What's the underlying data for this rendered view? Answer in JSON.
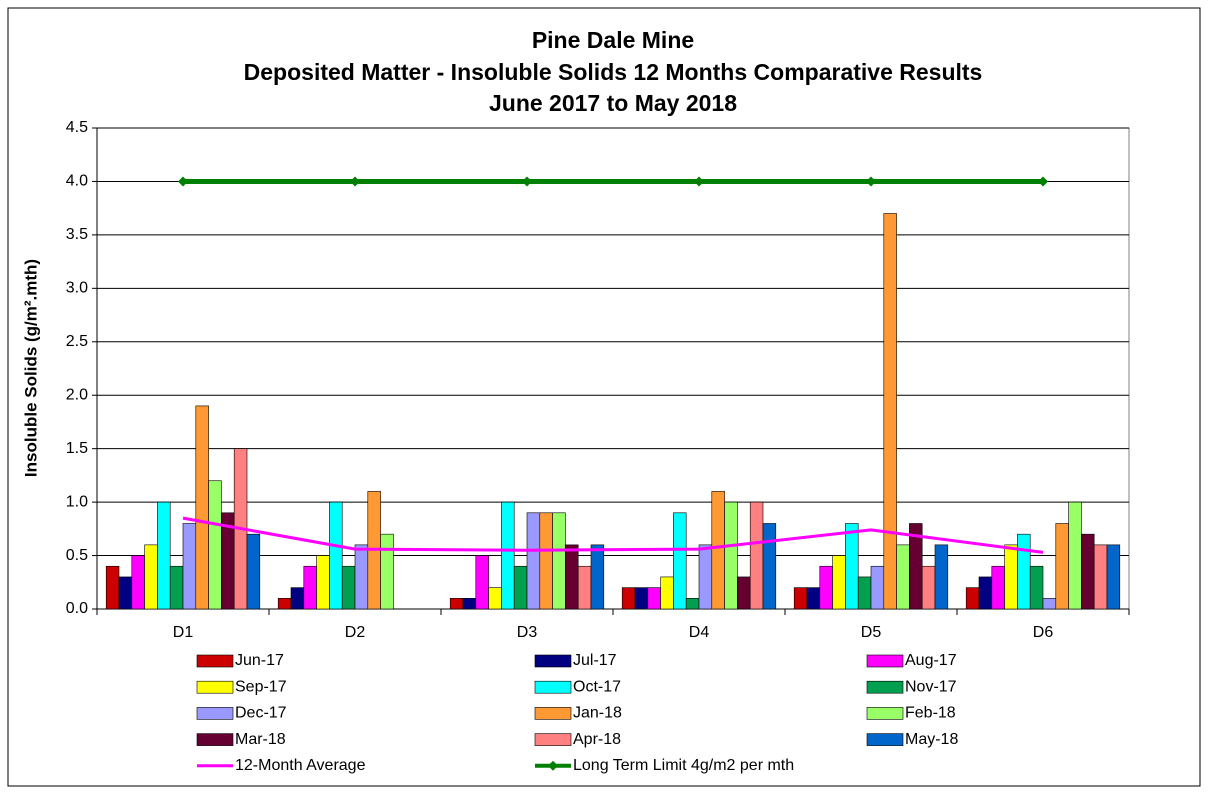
{
  "chart_data": {
    "type": "bar",
    "title": [
      "Pine Dale Mine",
      "Deposited Matter - Insoluble Solids 12 Months Comparative Results",
      "June 2017 to May 2018"
    ],
    "y_label": "Insoluble Solids (g/m².mth)",
    "categories": [
      "D1",
      "D2",
      "D3",
      "D4",
      "D5",
      "D6"
    ],
    "ylim": [
      0,
      4.5
    ],
    "yticks": [
      {
        "value": 0,
        "label": "0.0"
      },
      0.5,
      {
        "value": 1,
        "label": "1.0"
      },
      1.5,
      {
        "value": 2,
        "label": "2.0"
      },
      2.5,
      {
        "value": 3,
        "label": "3.0"
      },
      3.5,
      {
        "value": 4,
        "label": "4.0"
      },
      4.5
    ],
    "grid": true,
    "series": [
      {
        "name": "Jun-17",
        "color": "#cc0000",
        "values": [
          0.4,
          0.1,
          0.1,
          0.2,
          0.2,
          0.2
        ]
      },
      {
        "name": "Jul-17",
        "color": "#000080",
        "values": [
          0.3,
          0.2,
          0.1,
          0.2,
          0.2,
          0.3
        ]
      },
      {
        "name": "Aug-17",
        "color": "#ff00ff",
        "values": [
          0.5,
          0.4,
          0.5,
          0.2,
          0.4,
          0.4
        ]
      },
      {
        "name": "Sep-17",
        "color": "#ffff00",
        "values": [
          0.6,
          0.5,
          0.2,
          0.3,
          0.5,
          0.6
        ]
      },
      {
        "name": "Oct-17",
        "color": "#00ffff",
        "values": [
          1.0,
          1.0,
          1.0,
          0.9,
          0.8,
          0.7
        ]
      },
      {
        "name": "Nov-17",
        "color": "#00a050",
        "values": [
          0.4,
          0.4,
          0.4,
          0.1,
          0.3,
          0.4
        ]
      },
      {
        "name": "Dec-17",
        "color": "#9999ff",
        "values": [
          0.8,
          0.6,
          0.9,
          0.6,
          0.4,
          0.1
        ]
      },
      {
        "name": "Jan-18",
        "color": "#ff9933",
        "values": [
          1.9,
          1.1,
          0.9,
          1.1,
          3.7,
          0.8
        ]
      },
      {
        "name": "Feb-18",
        "color": "#99ff66",
        "values": [
          1.2,
          0.7,
          0.9,
          1.0,
          0.6,
          1.0
        ]
      },
      {
        "name": "Mar-18",
        "color": "#660033",
        "values": [
          0.9,
          null,
          0.6,
          0.3,
          0.8,
          0.7
        ]
      },
      {
        "name": "Apr-18",
        "color": "#ff8080",
        "values": [
          1.5,
          null,
          0.4,
          1.0,
          0.4,
          0.6
        ]
      },
      {
        "name": "May-18",
        "color": "#0066cc",
        "values": [
          0.7,
          null,
          0.6,
          0.8,
          0.6,
          0.6
        ]
      },
      {
        "name": "12-Month Average",
        "color": "#ff00ff",
        "type": "line",
        "values": [
          0.85,
          0.56,
          0.55,
          0.56,
          0.74,
          0.53
        ]
      },
      {
        "name": "Long Term Limit 4g/m2 per mth",
        "color": "#008000",
        "type": "line",
        "marker": "diamond",
        "values": [
          4.0,
          4.0,
          4.0,
          4.0,
          4.0,
          4.0
        ]
      }
    ]
  }
}
